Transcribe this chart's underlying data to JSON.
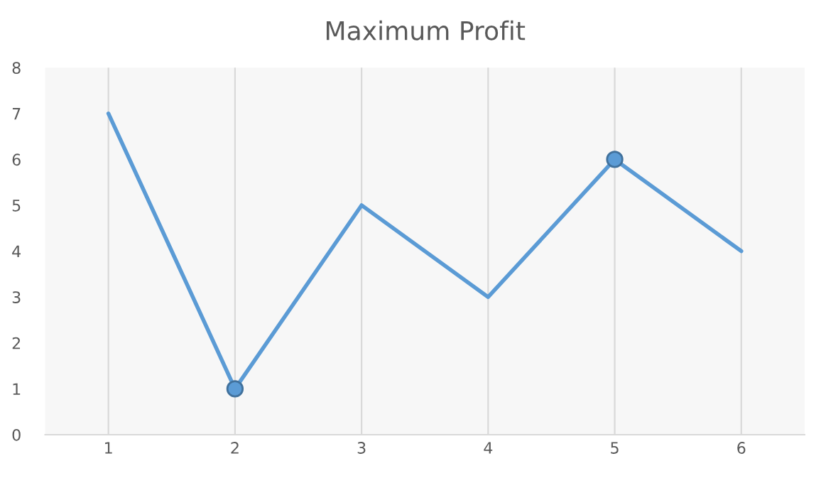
{
  "chart_data": {
    "type": "line",
    "title": "Maximum Profit",
    "categories": [
      "1",
      "2",
      "3",
      "4",
      "5",
      "6"
    ],
    "series": [
      {
        "color": "#5b9bd5",
        "values": [
          7,
          1,
          5,
          3,
          6,
          4
        ],
        "marker": "none"
      },
      {
        "type": "scatter",
        "color": "#5b9bd5",
        "x": [
          "2",
          "5"
        ],
        "values": [
          1,
          6
        ],
        "marker": "circle"
      }
    ],
    "ylim": [
      0,
      8
    ],
    "yticks": [
      0,
      1,
      2,
      3,
      4,
      5,
      6,
      7,
      8
    ],
    "grid": "x",
    "legend": false,
    "line_style": "solid"
  }
}
